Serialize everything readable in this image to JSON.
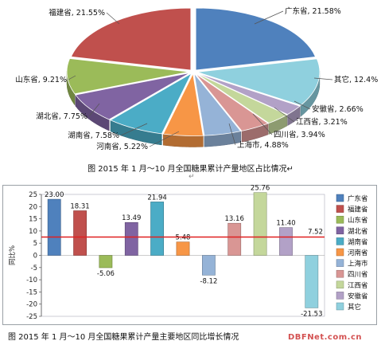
{
  "captions": {
    "pie": "图   2015 年 1 月～10 月全国糖果累计产量地区占比情况↵",
    "bar": "图   2015 年 1 月～10 月全国糖果累计产量主要地区同比增长情况",
    "mark": "↵"
  },
  "watermark": "DBFNet.com.cn",
  "chart_data": [
    {
      "type": "pie",
      "title": "",
      "slices": [
        {
          "label": "广东省",
          "value": 21.58,
          "display": "21.58%",
          "color": "#4f81bd"
        },
        {
          "label": "其它",
          "value": 12.4,
          "display": "12.4%",
          "color": "#8fd0de"
        },
        {
          "label": "安徽省",
          "value": 2.66,
          "display": "2.66%",
          "color": "#b2a1c7"
        },
        {
          "label": "江西省",
          "value": 3.21,
          "display": "3.21%",
          "color": "#c4d79b"
        },
        {
          "label": "四川省",
          "value": 3.94,
          "display": "3.94%",
          "color": "#d99694"
        },
        {
          "label": "上海市",
          "value": 4.88,
          "display": "4.88%",
          "color": "#95b3d7"
        },
        {
          "label": "河南省",
          "value": 5.22,
          "display": "5.22%",
          "color": "#f79646"
        },
        {
          "label": "湖南省",
          "value": 7.58,
          "display": "7.58%",
          "color": "#4bacc6"
        },
        {
          "label": "湖北省",
          "value": 7.75,
          "display": "7.75%",
          "color": "#8064a2"
        },
        {
          "label": "山东省",
          "value": 9.21,
          "display": "9.21%",
          "color": "#9bbb59"
        },
        {
          "label": "福建省",
          "value": 21.55,
          "display": "21.55%",
          "color": "#c0504d"
        }
      ]
    },
    {
      "type": "bar",
      "title": "",
      "ylabel": "同比%",
      "ylim": [
        -25,
        25
      ],
      "yticks": [
        25,
        20,
        15,
        10,
        5,
        0,
        -5,
        -10,
        -15,
        -20,
        -25
      ],
      "reference_line": {
        "value": 7.52,
        "label": "7.52",
        "color": "#e02020"
      },
      "legend_position": "right",
      "series": [
        {
          "name": "广东省",
          "value": 23.0,
          "label": "23.00",
          "color": "#4f81bd"
        },
        {
          "name": "福建省",
          "value": 18.31,
          "label": "18.31",
          "color": "#c0504d"
        },
        {
          "name": "山东省",
          "value": -5.06,
          "label": "-5.06",
          "color": "#9bbb59"
        },
        {
          "name": "湖北省",
          "value": 13.49,
          "label": "13.49",
          "color": "#8064a2"
        },
        {
          "name": "湖南省",
          "value": 21.94,
          "label": "21.94",
          "color": "#4bacc6"
        },
        {
          "name": "河南省",
          "value": 5.48,
          "label": "5.48",
          "color": "#f79646"
        },
        {
          "name": "上海市",
          "value": -8.12,
          "label": "-8.12",
          "color": "#95b3d7"
        },
        {
          "name": "四川省",
          "value": 13.16,
          "label": "13.16",
          "color": "#d99694"
        },
        {
          "name": "江西省",
          "value": 25.76,
          "label": "25.76",
          "color": "#c4d79b"
        },
        {
          "name": "安徽省",
          "value": 11.4,
          "label": "11.40",
          "color": "#b2a1c7"
        },
        {
          "name": "其它",
          "value": -21.53,
          "label": "-21.53",
          "color": "#8fd0de"
        }
      ]
    }
  ]
}
